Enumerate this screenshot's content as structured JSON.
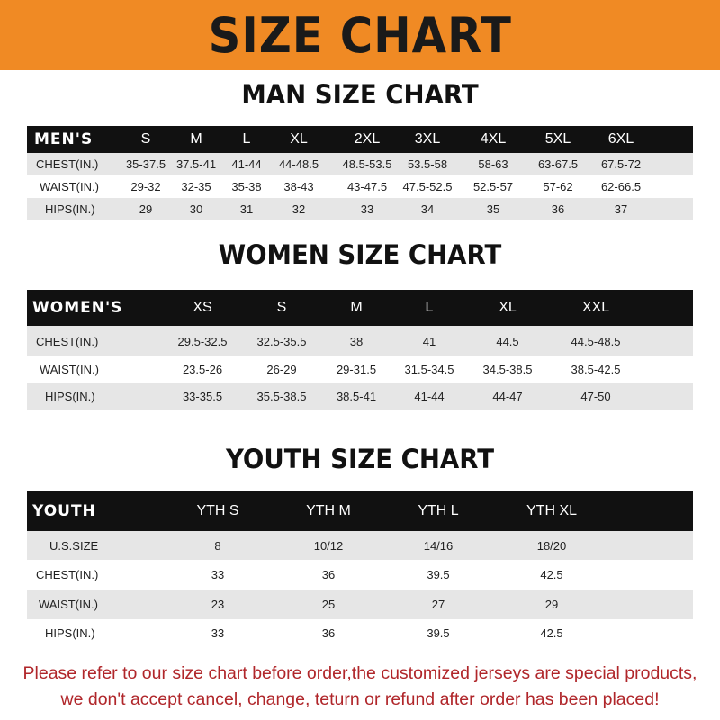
{
  "title": "SIZE CHART",
  "colors": {
    "banner": "#f08a24",
    "header_row": "#111111",
    "alt_row": "#e6e6e6",
    "notice": "#b0262a"
  },
  "men": {
    "title": "MAN SIZE CHART",
    "header": "MEN'S",
    "sizes": [
      "S",
      "M",
      "L",
      "XL",
      "2XL",
      "3XL",
      "4XL",
      "5XL",
      "6XL"
    ],
    "rows": [
      {
        "label": "CHEST(IN.)",
        "values": [
          "35-37.5",
          "37.5-41",
          "41-44",
          "44-48.5",
          "48.5-53.5",
          "53.5-58",
          "58-63",
          "63-67.5",
          "67.5-72"
        ]
      },
      {
        "label": "WAIST(IN.)",
        "values": [
          "29-32",
          "32-35",
          "35-38",
          "38-43",
          "43-47.5",
          "47.5-52.5",
          "52.5-57",
          "57-62",
          "62-66.5"
        ]
      },
      {
        "label": "HIPS(IN.)",
        "values": [
          "29",
          "30",
          "31",
          "32",
          "33",
          "34",
          "35",
          "36",
          "37"
        ]
      }
    ]
  },
  "women": {
    "title": "WOMEN SIZE CHART",
    "header": "WOMEN'S",
    "sizes": [
      "XS",
      "S",
      "M",
      "L",
      "XL",
      "XXL"
    ],
    "rows": [
      {
        "label": "CHEST(IN.)",
        "values": [
          "29.5-32.5",
          "32.5-35.5",
          "38",
          "41",
          "44.5",
          "44.5-48.5"
        ]
      },
      {
        "label": "WAIST(IN.)",
        "values": [
          "23.5-26",
          "26-29",
          "29-31.5",
          "31.5-34.5",
          "34.5-38.5",
          "38.5-42.5"
        ]
      },
      {
        "label": "HIPS(IN.)",
        "values": [
          "33-35.5",
          "35.5-38.5",
          "38.5-41",
          "41-44",
          "44-47",
          "47-50"
        ]
      }
    ]
  },
  "youth": {
    "title": "YOUTH SIZE CHART",
    "header": "YOUTH",
    "sizes": [
      "YTH S",
      "YTH M",
      "YTH L",
      "YTH XL"
    ],
    "rows": [
      {
        "label": "U.S.SIZE",
        "values": [
          "8",
          "10/12",
          "14/16",
          "18/20"
        ]
      },
      {
        "label": "CHEST(IN.)",
        "values": [
          "33",
          "36",
          "39.5",
          "42.5"
        ]
      },
      {
        "label": "WAIST(IN.)",
        "values": [
          "23",
          "25",
          "27",
          "29"
        ]
      },
      {
        "label": "HIPS(IN.)",
        "values": [
          "33",
          "36",
          "39.5",
          "42.5"
        ]
      }
    ]
  },
  "notice": {
    "line1": "Please refer to our size chart before order,the customized jerseys are special products,",
    "line2": "we don't accept cancel, change, teturn or refund after order has been placed!"
  }
}
